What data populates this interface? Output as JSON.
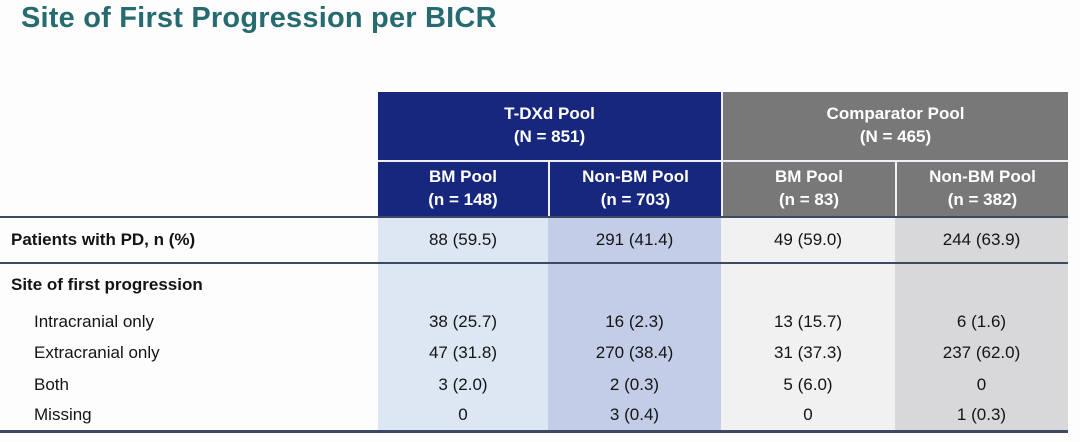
{
  "title": "Site of First Progression per BICR",
  "colors": {
    "title_teal": "#256b70",
    "tdxd_header_navy": "#16277d",
    "comparator_header_gray": "#787878",
    "col_tdxd_bm": "#dde6f3",
    "col_tdxd_nonbm": "#c4cde8",
    "col_comparator_bm": "#f1f1f2",
    "col_comparator_nonbm": "#d8d8da",
    "rule": "#3d4961"
  },
  "table": {
    "group_headers": [
      {
        "label": "T-DXd Pool",
        "sub": "(N = 851)"
      },
      {
        "label": "Comparator Pool",
        "sub": "(N = 465)"
      }
    ],
    "column_headers": [
      {
        "label": "BM Pool",
        "sub": "(n = 148)"
      },
      {
        "label": "Non-BM Pool",
        "sub": "(n = 703)"
      },
      {
        "label": "BM Pool",
        "sub": "(n = 83)"
      },
      {
        "label": "Non-BM Pool",
        "sub": "(n = 382)"
      }
    ],
    "rows": [
      {
        "label": "Patients with PD, n (%)",
        "values": [
          "88 (59.5)",
          "291 (41.4)",
          "49 (59.0)",
          "244 (63.9)"
        ]
      },
      {
        "label": "Site of first progression",
        "values": [
          "",
          "",
          "",
          ""
        ]
      },
      {
        "label": "Intracranial only",
        "values": [
          "38 (25.7)",
          "16 (2.3)",
          "13 (15.7)",
          "6 (1.6)"
        ]
      },
      {
        "label": "Extracranial only",
        "values": [
          "47 (31.8)",
          "270 (38.4)",
          "31 (37.3)",
          "237 (62.0)"
        ]
      },
      {
        "label": "Both",
        "values": [
          "3 (2.0)",
          "2 (0.3)",
          "5 (6.0)",
          "0"
        ]
      },
      {
        "label": "Missing",
        "values": [
          "0",
          "3 (0.4)",
          "0",
          "1 (0.3)"
        ]
      }
    ]
  }
}
